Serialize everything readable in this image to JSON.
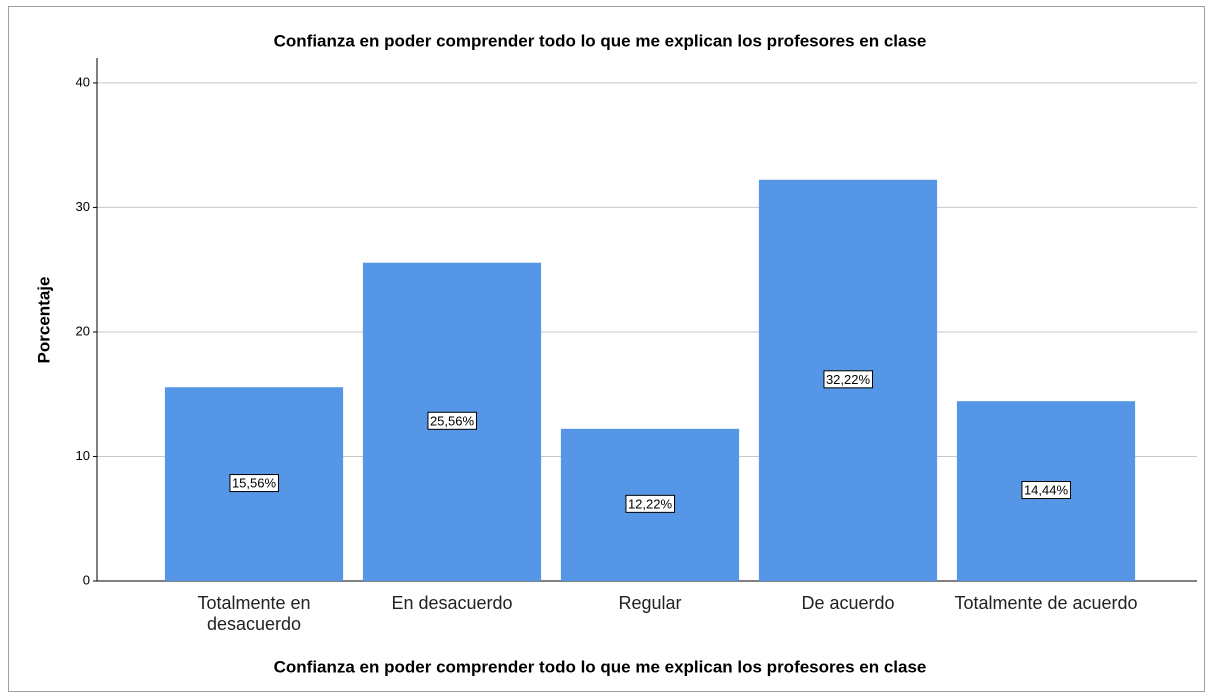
{
  "chart_data": {
    "type": "bar",
    "title": "Confianza en poder comprender todo lo que me explican los profesores en clase",
    "x_label": "Confianza en poder comprender todo lo que me explican los profesores en clase",
    "y_label": "Porcentaje",
    "categories": [
      "Totalmente en desacuerdo",
      "En desacuerdo",
      "Regular",
      "De acuerdo",
      "Totalmente de acuerdo"
    ],
    "values": [
      15.56,
      25.56,
      12.22,
      32.22,
      14.44
    ],
    "value_labels": [
      "15,56%",
      "25,56%",
      "12,22%",
      "32,22%",
      "14,44%"
    ],
    "color": "#5596e6",
    "ylim": [
      0,
      42
    ],
    "yticks": [
      0,
      10,
      20,
      30,
      40
    ],
    "grid": true
  }
}
